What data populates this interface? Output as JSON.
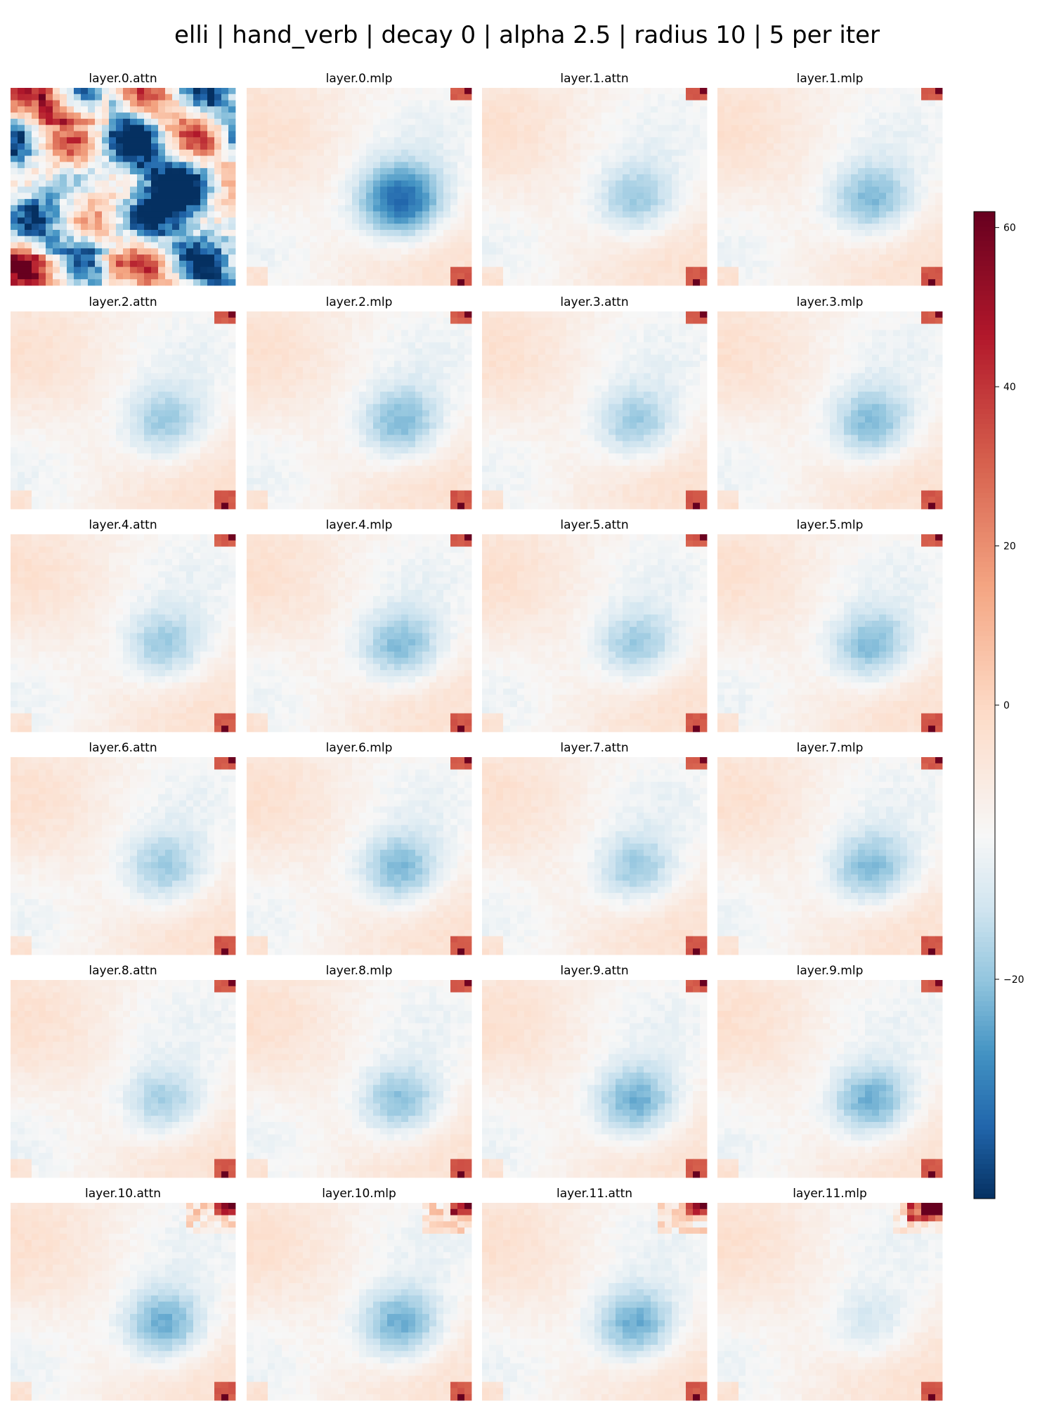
{
  "figure": {
    "title": "elli | hand_verb | decay 0 | alpha 2.5 | radius 10 | 5 per iter"
  },
  "chart_data": {
    "type": "heatmap",
    "grid": "off",
    "colormap": "RdBu_r",
    "value_range": [
      -36,
      62
    ],
    "colorbar": {
      "ticks": [
        60,
        40,
        20,
        0,
        -20
      ],
      "tick_labels": [
        "60",
        "40",
        "20",
        "0",
        "−20"
      ]
    },
    "panels": [
      {
        "title": "layer.0.attn"
      },
      {
        "title": "layer.0.mlp"
      },
      {
        "title": "layer.1.attn"
      },
      {
        "title": "layer.1.mlp"
      },
      {
        "title": "layer.2.attn"
      },
      {
        "title": "layer.2.mlp"
      },
      {
        "title": "layer.3.attn"
      },
      {
        "title": "layer.3.mlp"
      },
      {
        "title": "layer.4.attn"
      },
      {
        "title": "layer.4.mlp"
      },
      {
        "title": "layer.5.attn"
      },
      {
        "title": "layer.5.mlp"
      },
      {
        "title": "layer.6.attn"
      },
      {
        "title": "layer.6.mlp"
      },
      {
        "title": "layer.7.attn"
      },
      {
        "title": "layer.7.mlp"
      },
      {
        "title": "layer.8.attn"
      },
      {
        "title": "layer.8.mlp"
      },
      {
        "title": "layer.9.attn"
      },
      {
        "title": "layer.9.mlp"
      },
      {
        "title": "layer.10.attn"
      },
      {
        "title": "layer.10.mlp"
      },
      {
        "title": "layer.11.attn"
      },
      {
        "title": "layer.11.mlp"
      }
    ]
  }
}
